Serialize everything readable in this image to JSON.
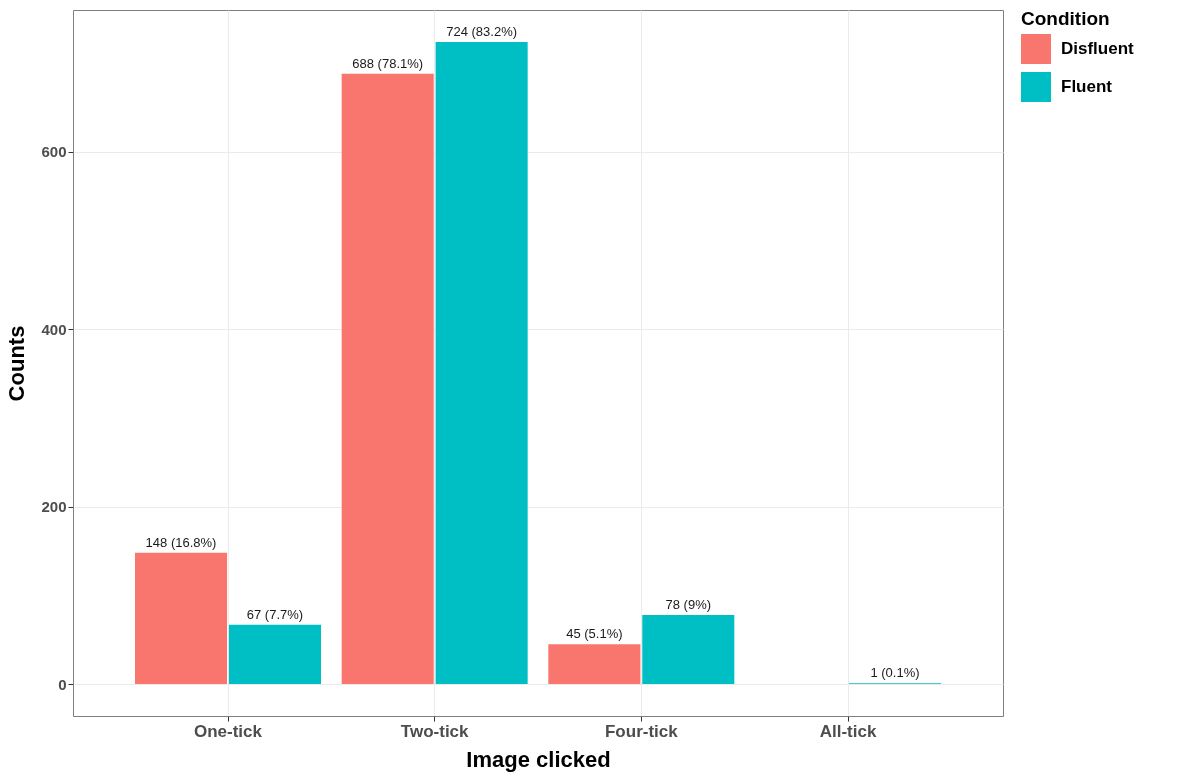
{
  "chart_data": {
    "type": "bar",
    "xlabel": "Image clicked",
    "ylabel": "Counts",
    "legend_title": "Condition",
    "categories": [
      "One-tick",
      "Two-tick",
      "Four-tick",
      "All-tick"
    ],
    "series": [
      {
        "name": "Disfluent",
        "color": "#f8766d",
        "values": [
          148,
          688,
          45,
          0
        ],
        "value_labels": [
          "148 (16.8%)",
          "688 (78.1%)",
          "45 (5.1%)",
          null
        ]
      },
      {
        "name": "Fluent",
        "color": "#00bfc4",
        "values": [
          67,
          724,
          78,
          1
        ],
        "value_labels": [
          "67 (7.7%)",
          "724 (83.2%)",
          "78 (9%)",
          "1 (0.1%)"
        ]
      }
    ],
    "ylim": [
      -36,
      760
    ],
    "yticks": [
      0,
      200,
      400,
      600
    ],
    "grid": true,
    "legend": "right"
  }
}
